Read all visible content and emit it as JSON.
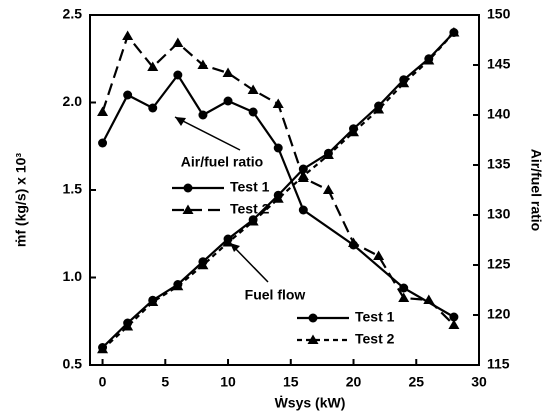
{
  "chart_data": {
    "type": "line",
    "x_label": "Ẇsys (kW)",
    "y_label": "ṁf (kg/s) x 10³",
    "y2_label": "Air/fuel ratio",
    "annotations": [
      "Air/fuel ratio",
      "Fuel flow"
    ],
    "xlim": [
      -1,
      30
    ],
    "xticks": [
      0,
      5,
      10,
      15,
      20,
      25,
      30
    ],
    "ylim": [
      0.5,
      2.5
    ],
    "yticks": [
      0.5,
      {
        "value": 1,
        "label": "1.0"
      },
      1.5,
      {
        "value": 2,
        "label": "2.0"
      },
      2.5
    ],
    "y2lim": [
      115,
      150
    ],
    "y2ticks": [
      115,
      120,
      125,
      130,
      135,
      140,
      145,
      150
    ],
    "series": [
      {
        "name": "Test 1",
        "color": "#000000",
        "marker": "circle",
        "dash": "none",
        "group": 0,
        "axis": "y2",
        "x": [
          0,
          2,
          4,
          6,
          8,
          10,
          12,
          14,
          16,
          20,
          24,
          28
        ],
        "values": [
          137.2,
          142,
          140.7,
          144,
          140,
          141.4,
          140.3,
          136.7,
          130.5,
          127,
          122.7,
          119.8
        ]
      },
      {
        "name": "Test 2",
        "color": "#000000",
        "marker": "triangle",
        "dash": "12 6",
        "group": 0,
        "axis": "y2",
        "x": [
          0,
          2,
          4,
          6,
          8,
          10,
          12,
          14,
          16,
          18,
          20,
          22,
          24,
          26,
          28
        ],
        "values": [
          140.3,
          147.9,
          144.8,
          147.2,
          145,
          144.2,
          142.5,
          141.1,
          133.7,
          132.5,
          127.2,
          125.9,
          121.7,
          121.5,
          119
        ]
      },
      {
        "name": "Test 1",
        "color": "#000000",
        "marker": "circle",
        "dash": "none",
        "group": 1,
        "axis": "y",
        "x": [
          0,
          2,
          4,
          6,
          8,
          10,
          12,
          14,
          16,
          18,
          20,
          22,
          24,
          26,
          28
        ],
        "values": [
          0.6,
          0.74,
          0.87,
          0.96,
          1.09,
          1.22,
          1.33,
          1.47,
          1.62,
          1.71,
          1.85,
          1.98,
          2.13,
          2.25,
          2.4
        ]
      },
      {
        "name": "Test 2",
        "color": "#000000",
        "marker": "triangle",
        "dash": "5 4",
        "group": 1,
        "axis": "y",
        "x": [
          0,
          2,
          4,
          6,
          8,
          10,
          12,
          14,
          16,
          18,
          20,
          22,
          24,
          26,
          28
        ],
        "values": [
          0.59,
          0.72,
          0.86,
          0.95,
          1.07,
          1.2,
          1.32,
          1.45,
          1.58,
          1.7,
          1.83,
          1.96,
          2.11,
          2.24,
          2.4
        ]
      }
    ]
  }
}
